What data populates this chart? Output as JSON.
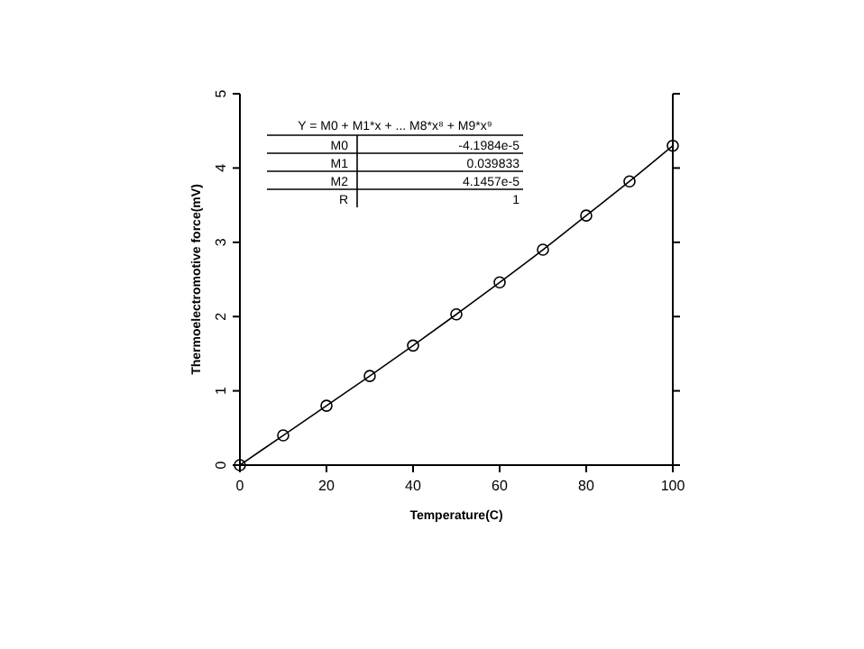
{
  "chart_data": {
    "type": "line",
    "xlabel": "Temperature(C)",
    "ylabel": "Thermoelectromotive force(mV)",
    "x": [
      0,
      10,
      20,
      30,
      40,
      50,
      60,
      70,
      80,
      90,
      100
    ],
    "series": [
      {
        "color": "#000000",
        "values": [
          0,
          0.4,
          0.8,
          1.2,
          1.61,
          2.03,
          2.46,
          2.9,
          3.36,
          3.82,
          4.3
        ]
      }
    ],
    "xlim": [
      0,
      100
    ],
    "xticks": [
      0,
      20,
      40,
      60,
      80,
      100
    ],
    "ylim": [
      0,
      5
    ],
    "yticks": [
      0,
      1,
      2,
      3,
      4,
      5
    ],
    "marker": "circle",
    "line_style": "solid",
    "grid": false,
    "annotations": [
      "Y = M0 + M1*x + ... M8*x⁸ + M9*x⁹",
      "M0",
      "-4.1984e-5",
      "M1",
      "0.039833",
      "M2",
      "4.1457e-5",
      "R",
      "1"
    ]
  }
}
